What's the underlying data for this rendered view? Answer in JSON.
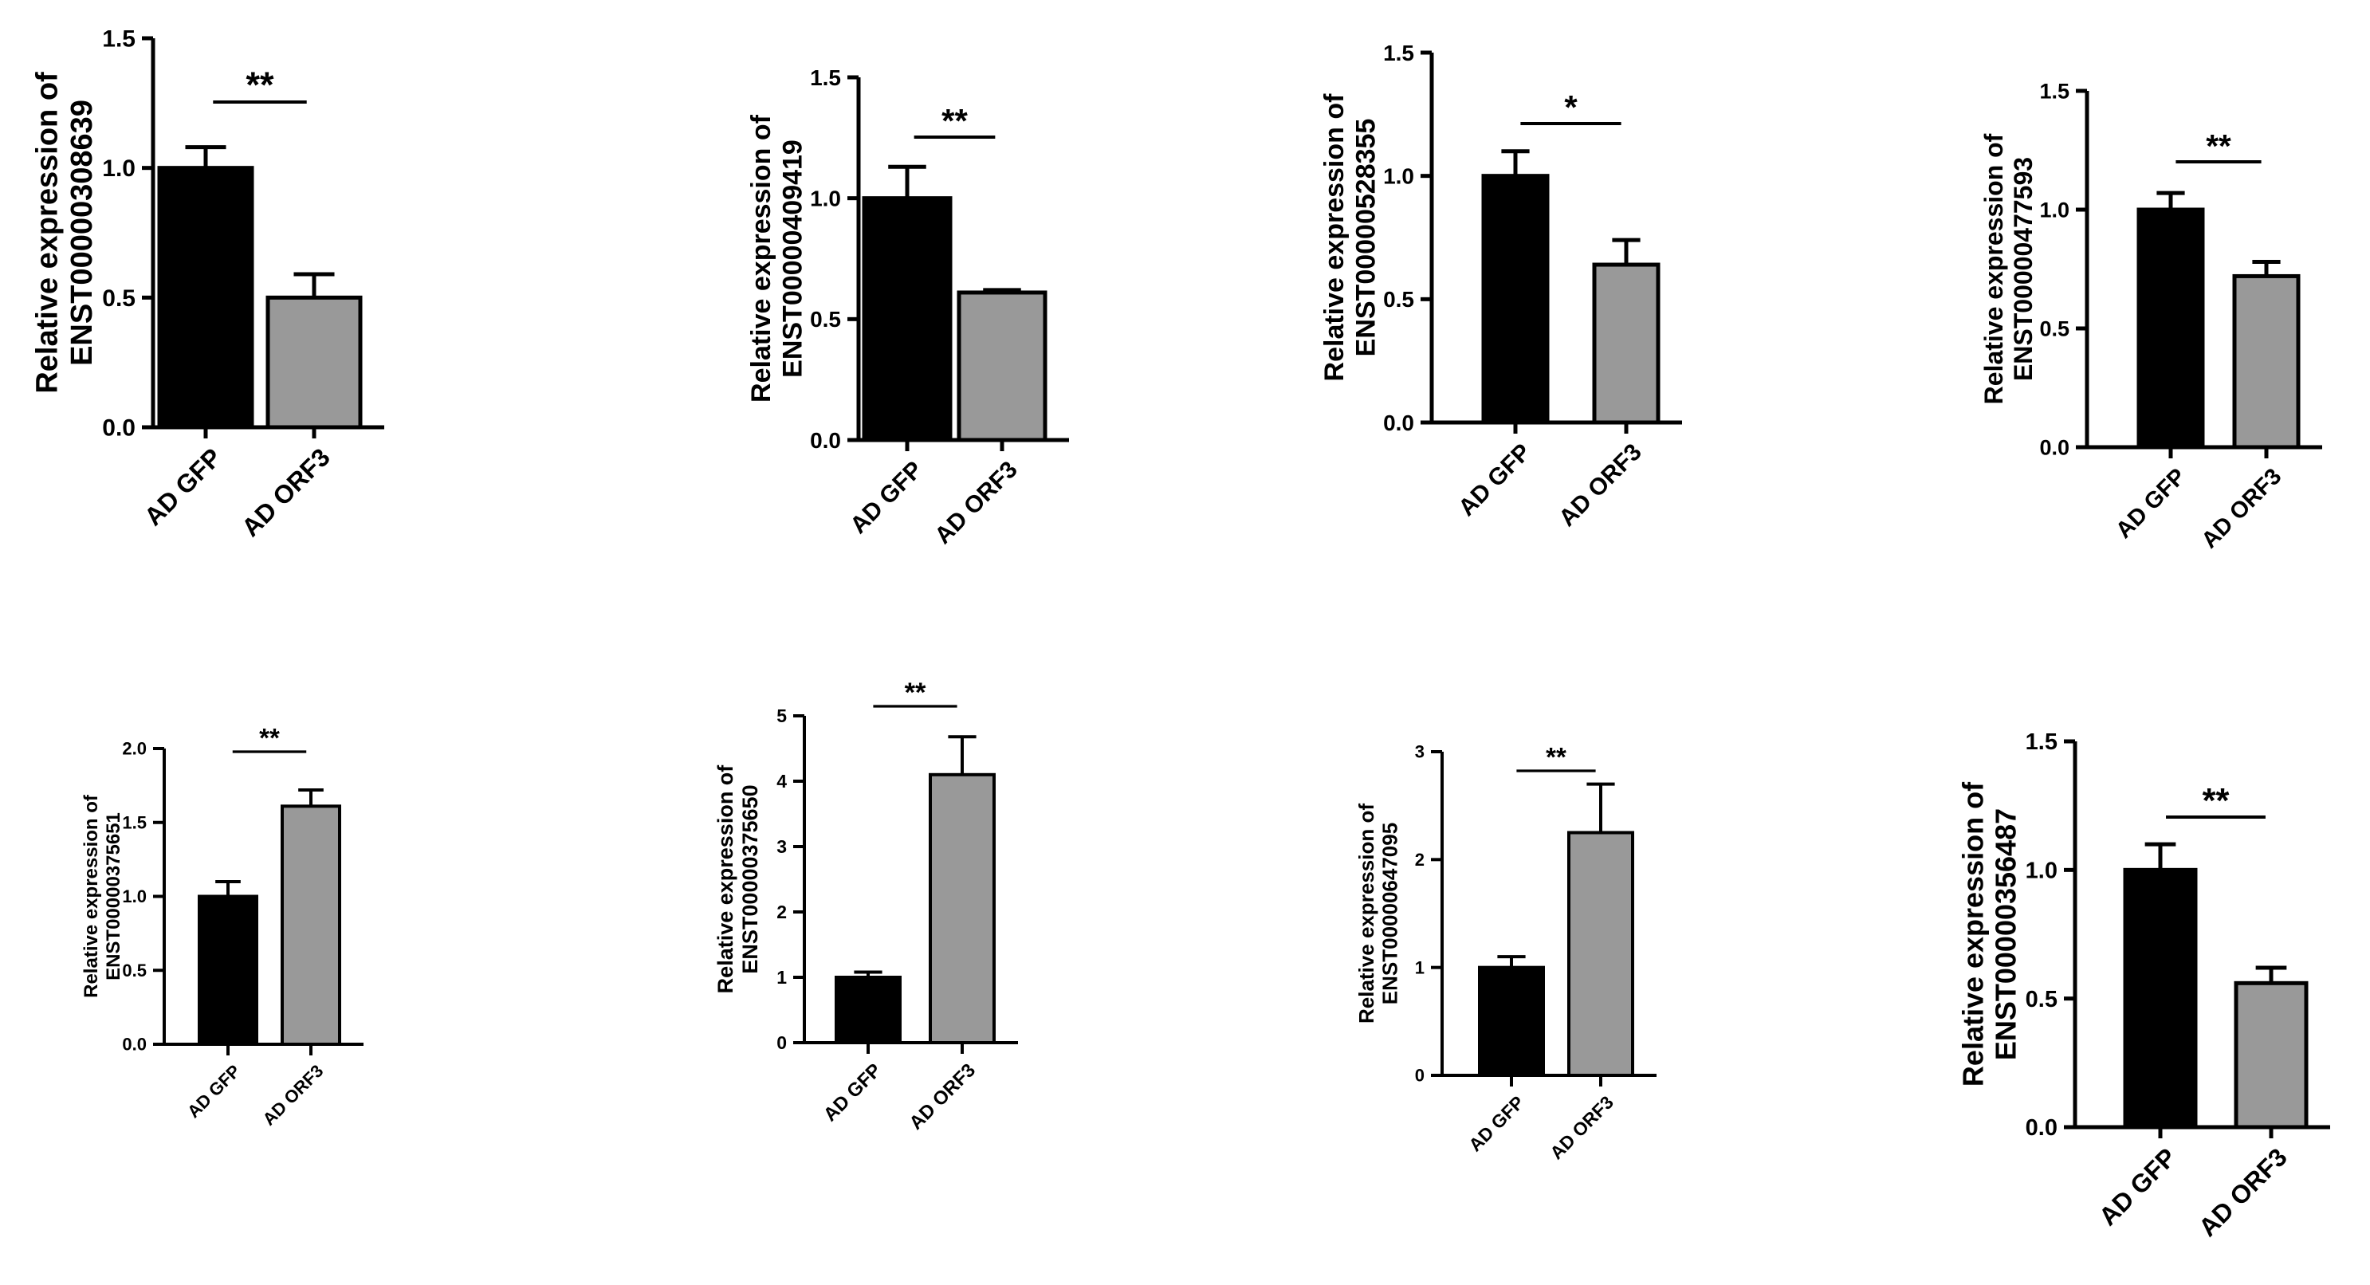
{
  "chart_data": [
    {
      "type": "bar",
      "categories": [
        "AD GFP",
        "AD ORF3"
      ],
      "ylabel_line1": "Relative expression of",
      "ylabel_line2": "ENST00000308639",
      "ylim": [
        0,
        1.5
      ],
      "yticks": [
        "0.0",
        "0.5",
        "1.0",
        "1.5"
      ],
      "tick_values": [
        0,
        0.5,
        1,
        1.5
      ],
      "series": [
        {
          "values": [
            1.0,
            0.5
          ],
          "errors": [
            0.08,
            0.09
          ],
          "colors": [
            "#000000",
            "#999999"
          ]
        }
      ],
      "significance": "**"
    },
    {
      "type": "bar",
      "categories": [
        "AD GFP",
        "AD ORF3"
      ],
      "ylabel_line1": "Relative expression of",
      "ylabel_line2": "ENST00000409419",
      "ylim": [
        0,
        1.5
      ],
      "yticks": [
        "0.0",
        "0.5",
        "1.0",
        "1.5"
      ],
      "tick_values": [
        0,
        0.5,
        1,
        1.5
      ],
      "series": [
        {
          "values": [
            1.0,
            0.61
          ],
          "errors": [
            0.13,
            0.01
          ],
          "colors": [
            "#000000",
            "#999999"
          ]
        }
      ],
      "significance": "**"
    },
    {
      "type": "bar",
      "categories": [
        "AD GFP",
        "AD ORF3"
      ],
      "ylabel_line1": "Relative expression of",
      "ylabel_line2": "ENST00000528355",
      "ylim": [
        0,
        1.5
      ],
      "yticks": [
        "0.0",
        "0.5",
        "1.0",
        "1.5"
      ],
      "tick_values": [
        0,
        0.5,
        1,
        1.5
      ],
      "series": [
        {
          "values": [
            1.0,
            0.64
          ],
          "errors": [
            0.1,
            0.1
          ],
          "colors": [
            "#000000",
            "#999999"
          ]
        }
      ],
      "significance": "*"
    },
    {
      "type": "bar",
      "categories": [
        "AD GFP",
        "AD ORF3"
      ],
      "ylabel_line1": "Relative expression of",
      "ylabel_line2": "ENST00000477593",
      "ylim": [
        0,
        1.5
      ],
      "yticks": [
        "0.0",
        "0.5",
        "1.0",
        "1.5"
      ],
      "tick_values": [
        0,
        0.5,
        1,
        1.5
      ],
      "series": [
        {
          "values": [
            1.0,
            0.72
          ],
          "errors": [
            0.07,
            0.06
          ],
          "colors": [
            "#000000",
            "#999999"
          ]
        }
      ],
      "significance": "**"
    },
    {
      "type": "bar",
      "categories": [
        "AD GFP",
        "AD ORF3"
      ],
      "ylabel_line1": "Relative expression of",
      "ylabel_line2": "ENST00000375651",
      "ylim": [
        0,
        2.0
      ],
      "yticks": [
        "0.0",
        "0.5",
        "1.0",
        "1.5",
        "2.0"
      ],
      "tick_values": [
        0,
        0.5,
        1,
        1.5,
        2
      ],
      "series": [
        {
          "values": [
            1.0,
            1.61
          ],
          "errors": [
            0.1,
            0.11
          ],
          "colors": [
            "#000000",
            "#999999"
          ]
        }
      ],
      "significance": "**"
    },
    {
      "type": "bar",
      "categories": [
        "AD GFP",
        "AD ORF3"
      ],
      "ylabel_line1": "Relative expression of",
      "ylabel_line2": "ENST00000375650",
      "ylim": [
        0,
        5
      ],
      "yticks": [
        "0",
        "1",
        "2",
        "3",
        "4",
        "5"
      ],
      "tick_values": [
        0,
        1,
        2,
        3,
        4,
        5
      ],
      "series": [
        {
          "values": [
            1.0,
            4.1
          ],
          "errors": [
            0.08,
            0.58
          ],
          "colors": [
            "#000000",
            "#999999"
          ]
        }
      ],
      "significance": "**"
    },
    {
      "type": "bar",
      "categories": [
        "AD GFP",
        "AD ORF3"
      ],
      "ylabel_line1": "Relative expression of",
      "ylabel_line2": "ENST00000647095",
      "ylim": [
        0,
        3
      ],
      "yticks": [
        "0",
        "1",
        "2",
        "3"
      ],
      "tick_values": [
        0,
        1,
        2,
        3
      ],
      "series": [
        {
          "values": [
            1.0,
            2.25
          ],
          "errors": [
            0.1,
            0.45
          ],
          "colors": [
            "#000000",
            "#999999"
          ]
        }
      ],
      "significance": "**"
    },
    {
      "type": "bar",
      "categories": [
        "AD GFP",
        "AD ORF3"
      ],
      "ylabel_line1": "Relative expression of",
      "ylabel_line2": "ENST00000356487",
      "ylim": [
        0,
        1.5
      ],
      "yticks": [
        "0.0",
        "0.5",
        "1.0",
        "1.5"
      ],
      "tick_values": [
        0,
        0.5,
        1,
        1.5
      ],
      "series": [
        {
          "values": [
            1.0,
            0.56
          ],
          "errors": [
            0.1,
            0.06
          ],
          "colors": [
            "#000000",
            "#999999"
          ]
        }
      ],
      "significance": "**"
    }
  ]
}
